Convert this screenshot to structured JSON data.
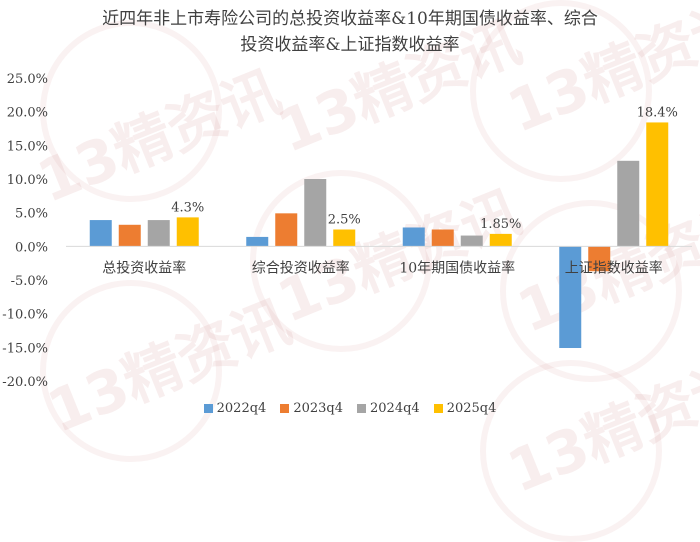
{
  "chart_data": {
    "type": "bar",
    "title": [
      "近四年非上市寿险公司的总投资收益率&10年期国债收益率、综合",
      "投资收益率&上证指数收益率"
    ],
    "categories": [
      "总投资收益率",
      "综合投资收益率",
      "10年期国债收益率",
      "上证指数收益率"
    ],
    "series": [
      {
        "name": "2022q4",
        "color": "#5B9BD5",
        "values": [
          3.9,
          1.4,
          2.8,
          -15.1
        ]
      },
      {
        "name": "2023q4",
        "color": "#ED7D31",
        "values": [
          3.2,
          4.9,
          2.5,
          -3.7
        ]
      },
      {
        "name": "2024q4",
        "color": "#A5A5A5",
        "values": [
          3.9,
          10.0,
          1.6,
          12.7
        ]
      },
      {
        "name": "2025q4",
        "color": "#FFC000",
        "values": [
          4.3,
          2.5,
          1.85,
          18.4
        ]
      }
    ],
    "data_labels": [
      {
        "category": "总投资收益率",
        "series": "2025q4",
        "text": "4.3%"
      },
      {
        "category": "综合投资收益率",
        "series": "2025q4",
        "text": "2.5%"
      },
      {
        "category": "10年期国债收益率",
        "series": "2025q4",
        "text": "1.85%"
      },
      {
        "category": "上证指数收益率",
        "series": "2025q4",
        "text": "18.4%"
      }
    ],
    "ylim": [
      -20,
      25
    ],
    "yticks": [
      -20,
      -15,
      -10,
      -5,
      0,
      5,
      10,
      15,
      20,
      25
    ],
    "ytick_labels": [
      "-20.0%",
      "-15.0%",
      "-10.0%",
      "-5.0%",
      "0.0%",
      "5.0%",
      "10.0%",
      "15.0%",
      "20.0%",
      "25.0%"
    ],
    "grid": false,
    "legend_position": "bottom"
  },
  "watermark": "13精资讯"
}
